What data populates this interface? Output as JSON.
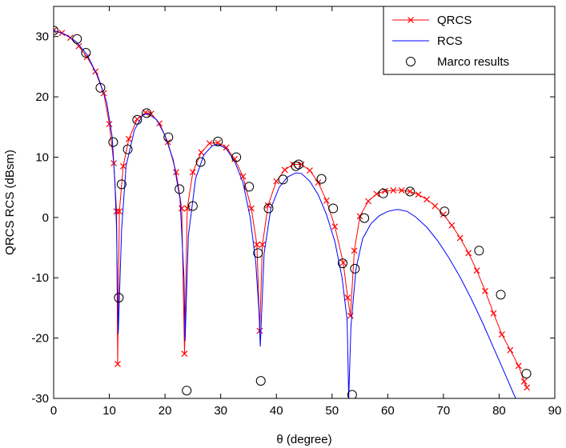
{
  "chart_data": {
    "type": "line",
    "title": "",
    "xlabel": "θ (degree)",
    "ylabel": "QRCS RCS (dBsm)",
    "xlim": [
      0,
      90
    ],
    "ylim": [
      -30,
      35
    ],
    "xticks": [
      0,
      10,
      20,
      30,
      40,
      50,
      60,
      70,
      80,
      90
    ],
    "yticks": [
      -30,
      -20,
      -10,
      0,
      10,
      20,
      30
    ],
    "grid": false,
    "legend_position": "top-right",
    "series": [
      {
        "name": "QRCS",
        "style": "line-with-x-markers",
        "color": "#ff0000",
        "x": [
          0,
          1.5,
          3,
          4.5,
          6,
          7.5,
          9,
          10,
          10.8,
          11.3,
          11.5,
          11.8,
          12.5,
          13.5,
          15,
          16.5,
          17.5,
          19,
          20.5,
          22,
          23,
          23.5,
          24,
          25,
          26.5,
          28,
          29.5,
          31,
          32.5,
          34,
          35.5,
          36.5,
          37,
          37.5,
          38.5,
          40,
          41.5,
          43,
          44.5,
          46,
          47.5,
          49,
          50.5,
          52,
          52.8,
          53.3,
          54,
          55,
          56.5,
          58,
          59.5,
          61,
          62.5,
          64,
          65.5,
          67,
          68.5,
          70,
          71.5,
          73,
          74.5,
          76,
          77.5,
          79,
          80.5,
          82,
          83.5,
          84.5,
          85
        ],
        "values": [
          31,
          30.6,
          29.8,
          28.4,
          26.6,
          24.2,
          20.6,
          15.5,
          9,
          1,
          -24.3,
          1,
          8.5,
          13,
          16.3,
          17.4,
          17.2,
          15.6,
          12.5,
          7.5,
          1.5,
          -22.6,
          1.5,
          7.5,
          10.8,
          12.3,
          12.4,
          11.6,
          9.7,
          6.8,
          1.5,
          -4.5,
          -18.8,
          -4.5,
          2,
          6,
          7.9,
          8.8,
          8.8,
          7.8,
          5.8,
          2.8,
          -1.5,
          -7.5,
          -13.3,
          -16.3,
          -5.5,
          0.2,
          2.7,
          3.9,
          4.4,
          4.5,
          4.5,
          4.3,
          3.8,
          3,
          1.9,
          0.5,
          -1.3,
          -3.4,
          -5.9,
          -8.8,
          -12.2,
          -15.9,
          -19.4,
          -22,
          -24.6,
          -27.2,
          -28.2
        ]
      },
      {
        "name": "RCS",
        "style": "line",
        "color": "#0000ff",
        "x": [
          0,
          2,
          4,
          6,
          8,
          9.5,
          10.5,
          11,
          11.3,
          11.6,
          12.2,
          13,
          14.5,
          16,
          17,
          18.5,
          20,
          21.5,
          22.7,
          23.4,
          23.6,
          24.2,
          25.5,
          27,
          28.5,
          29.5,
          31,
          32.5,
          34,
          35.3,
          36.3,
          36.9,
          37.1,
          37.8,
          39,
          40.5,
          42,
          43.5,
          44.5,
          46,
          47.5,
          49,
          50.5,
          51.8,
          52.7,
          53,
          53.4,
          54.3,
          55.5,
          57,
          58.5,
          60,
          61.5,
          62,
          63.5,
          65,
          67,
          69,
          71,
          73,
          75,
          77,
          79,
          81,
          82.5,
          83.5,
          84.2
        ],
        "values": [
          31,
          30.4,
          29.2,
          27,
          23.3,
          19.2,
          13.5,
          6,
          -2,
          -19.3,
          -2,
          8.5,
          14.5,
          17,
          17.2,
          16.2,
          13.6,
          9.5,
          3,
          -10,
          -20.5,
          -3,
          6.5,
          10.4,
          11.9,
          12.1,
          11.4,
          9.3,
          5.8,
          0,
          -7.5,
          -16,
          -21.4,
          -6,
          1.5,
          5,
          6.7,
          7.4,
          7.3,
          6,
          3.8,
          0.5,
          -4,
          -10,
          -17,
          -30,
          -18,
          -8.5,
          -3.5,
          -1,
          0.3,
          1,
          1.3,
          1.3,
          1,
          0.1,
          -1.6,
          -3.9,
          -6.7,
          -9.9,
          -13.5,
          -17.4,
          -21.6,
          -25.8,
          -29,
          -31,
          -32.5
        ]
      },
      {
        "name": "Marco results",
        "style": "markers-circle",
        "color": "#000000",
        "x": [
          0,
          4.2,
          5.8,
          8.4,
          10.7,
          11.7,
          12.2,
          13.3,
          15,
          16.7,
          20.6,
          22.6,
          23.9,
          25,
          26.4,
          29.5,
          32.8,
          35.1,
          36.7,
          37.2,
          38.6,
          41.2,
          43.5,
          44,
          48.1,
          50.2,
          51.9,
          53.6,
          54.1,
          55.8,
          59.2,
          64,
          70.2,
          76.4,
          80.3,
          84.9
        ],
        "values": [
          31,
          29.6,
          27.3,
          21.5,
          12.5,
          -13.3,
          5.5,
          11.3,
          16.2,
          17.3,
          13.3,
          4.7,
          -28.7,
          1.9,
          9.2,
          12.6,
          10,
          5.1,
          -5.9,
          -27.1,
          1.5,
          6.3,
          8.5,
          8.8,
          6.4,
          1.5,
          -7.6,
          -29.4,
          -8.5,
          -0.1,
          4,
          4.3,
          1,
          -5.5,
          -12.8,
          -25.9
        ]
      }
    ]
  }
}
